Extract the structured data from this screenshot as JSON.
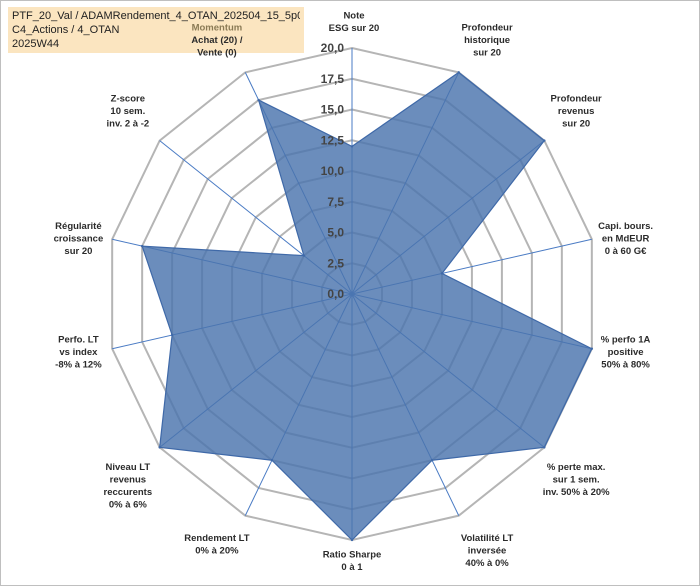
{
  "header": {
    "line1": "PTF_20_Val / ADAMRendement_4_OTAN_202504_15_5p0",
    "line2": "C4_Actions / 4_OTAN",
    "line3": "2025W44"
  },
  "chart_data": {
    "type": "radar",
    "title": "",
    "rmin": 0,
    "rmax": 20,
    "ticks": [
      "0,0",
      "2,5",
      "5,0",
      "7,5",
      "10,0",
      "12,5",
      "15,0",
      "17,5",
      "20,0"
    ],
    "axes": [
      {
        "label": [
          "Note",
          "ESG sur 20"
        ],
        "value": 12
      },
      {
        "label": [
          "Profondeur",
          "historique",
          "sur 20"
        ],
        "value": 20
      },
      {
        "label": [
          "Profondeur",
          "revenus",
          "sur 20"
        ],
        "value": 20
      },
      {
        "label": [
          "Capi. bours.",
          "en MdEUR",
          "0 à 60 G€"
        ],
        "value": 7.5
      },
      {
        "label": [
          "% perfo 1A",
          "positive",
          "50% à 80%"
        ],
        "value": 20
      },
      {
        "label": [
          "% perte max.",
          "sur 1 sem.",
          "inv. 50% à 20%"
        ],
        "value": 20
      },
      {
        "label": [
          "Volatilité LT",
          "inversée",
          "40% à 0%"
        ],
        "value": 15
      },
      {
        "label": [
          "Ratio Sharpe",
          "0 à 1"
        ],
        "value": 20
      },
      {
        "label": [
          "Rendement LT",
          "0% à 20%"
        ],
        "value": 15
      },
      {
        "label": [
          "Niveau LT",
          "revenus",
          "reccurents",
          "0% à 6%"
        ],
        "value": 20
      },
      {
        "label": [
          "Perfo. LT",
          "vs index",
          "-8% à 12%"
        ],
        "value": 15
      },
      {
        "label": [
          "Régularité",
          "croissance",
          "sur 20"
        ],
        "value": 17.5
      },
      {
        "label": [
          "Z-score",
          "10 sem.",
          "inv. 2 à -2"
        ],
        "value": 5
      },
      {
        "label": [
          "Momentum",
          "Achat (20) /",
          "Vente (0)"
        ],
        "value": 17.5
      }
    ],
    "colors": {
      "fill": "#4a74ad",
      "stroke": "#3f69a8",
      "grid": "#b5b5b5",
      "spoke": "#4a7bc4",
      "first_label_line": "#8a7a55"
    }
  }
}
